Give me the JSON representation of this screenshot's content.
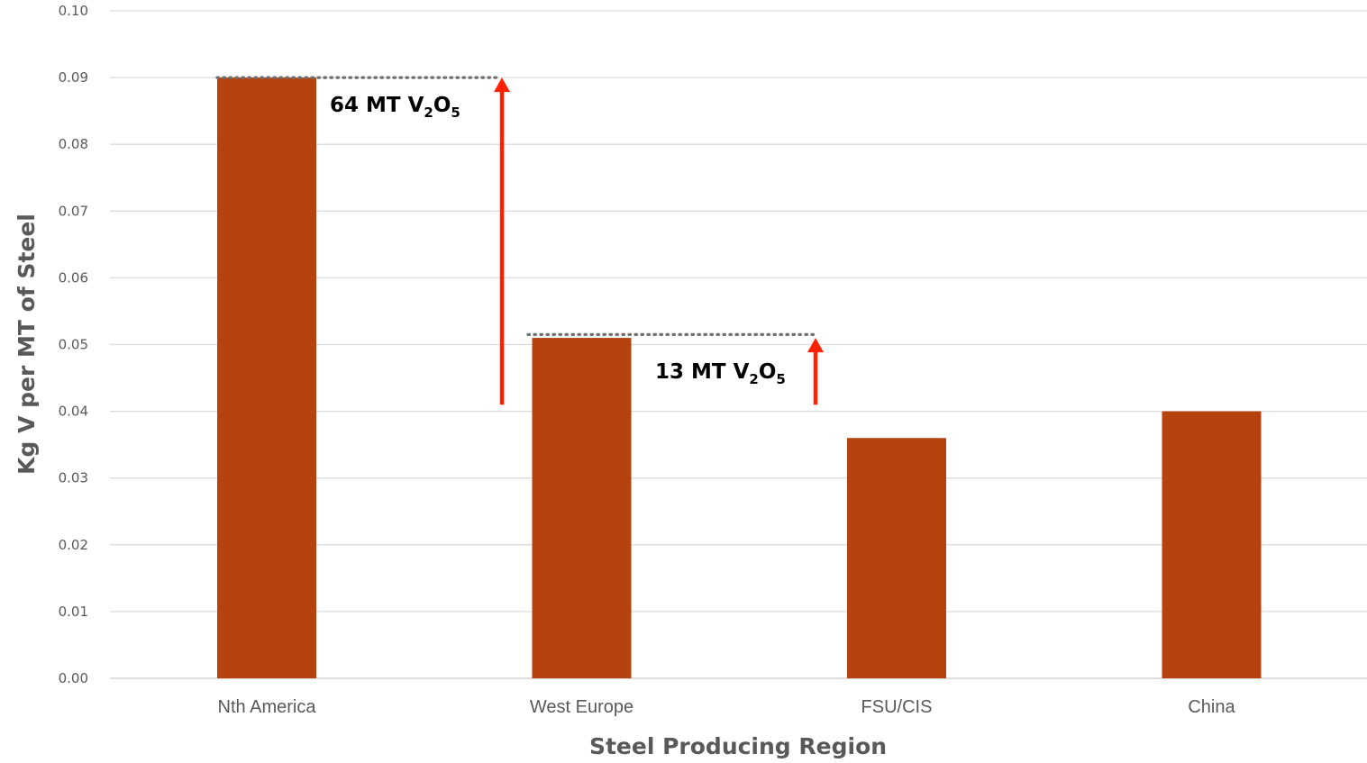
{
  "chart_data": {
    "type": "bar",
    "categories": [
      "Nth America",
      "West Europe",
      "FSU/CIS",
      "China"
    ],
    "values": [
      0.09,
      0.051,
      0.036,
      0.04
    ],
    "xlabel": "Steel Producing Region",
    "ylabel": "Kg V per MT of Steel",
    "ylim": [
      0,
      0.1
    ],
    "yticks": [
      "0.00",
      "0.01",
      "0.02",
      "0.03",
      "0.04",
      "0.05",
      "0.06",
      "0.07",
      "0.08",
      "0.09",
      "0.10"
    ],
    "grid": true,
    "legend": "none",
    "bar_color": "#b5420f",
    "annotations": [
      {
        "prefix": "64 MT V",
        "sub1": "2",
        "mid": "O",
        "sub2": "5",
        "arrow_from": 0.041,
        "arrow_to": 0.09,
        "ref_line_value": 0.09
      },
      {
        "prefix": "13 MT V",
        "sub1": "2",
        "mid": "O",
        "sub2": "5",
        "arrow_from": 0.041,
        "arrow_to": 0.051,
        "ref_line_value": 0.0515
      }
    ],
    "arrow_color": "#ff2200"
  }
}
